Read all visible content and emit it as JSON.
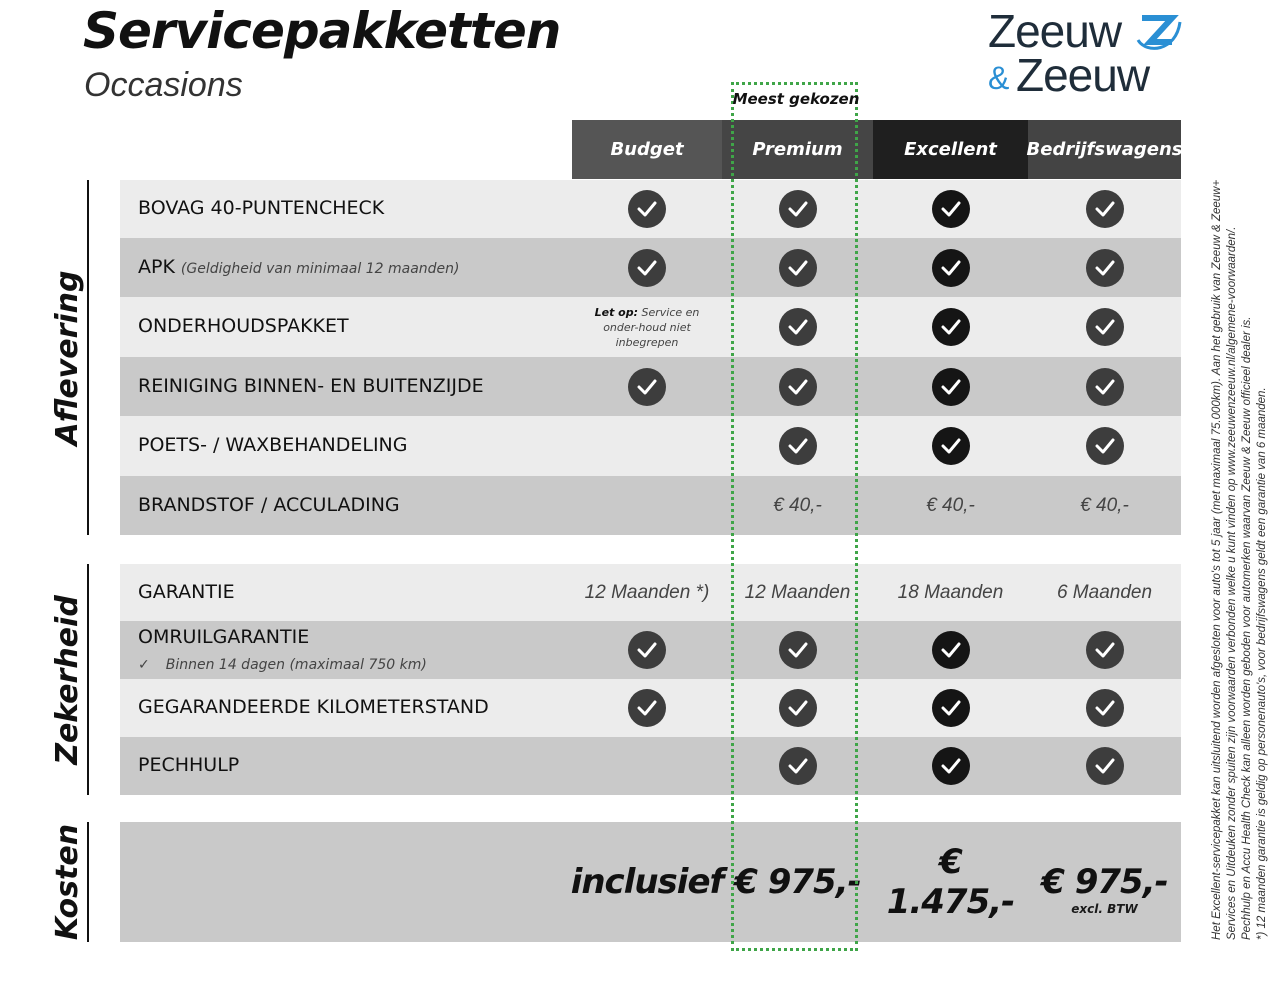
{
  "header": {
    "title": "Servicepakketten",
    "subtitle": "Occasions",
    "logo_text": [
      "Zeeuw",
      "&",
      "Zeeuw"
    ],
    "most_chosen": "Meest gekozen"
  },
  "colors": {
    "accent_green": "#3fa548",
    "logo_blue": "#2a8fd4",
    "logo_dark": "#1f2d3a"
  },
  "columns": [
    {
      "label": "Budget",
      "bg": "#555555"
    },
    {
      "label": "Premium",
      "bg": "#454545"
    },
    {
      "label": "Excellent",
      "bg": "#1f1f1f"
    },
    {
      "label": "Bedrijfswagens",
      "bg": "#444444"
    }
  ],
  "sections": [
    {
      "label": "Aflevering",
      "rows": [
        {
          "label": "BOVAG 40-PUNTENCHECK",
          "cells": [
            "check",
            "check",
            "check",
            "check"
          ]
        },
        {
          "label": "APK",
          "sub": "(Geldigheid van minimaal 12 maanden)",
          "cells": [
            "check",
            "check",
            "check",
            "check"
          ]
        },
        {
          "label": "ONDERHOUDSPAKKET",
          "note_bold": "Let op:",
          "note": "Service en onder-houd niet inbegrepen",
          "cells": [
            "note",
            "check",
            "check",
            "check"
          ]
        },
        {
          "label": "REINIGING BINNEN- EN BUITENZIJDE",
          "cells": [
            "check",
            "check",
            "check",
            "check"
          ]
        },
        {
          "label": "POETS- / WAXBEHANDELING",
          "cells": [
            "",
            "check",
            "check",
            "check"
          ]
        },
        {
          "label": "BRANDSTOF / ACCULADING",
          "cells": [
            "",
            "€ 40,-",
            "€ 40,-",
            "€ 40,-"
          ]
        }
      ]
    },
    {
      "label": "Zekerheid",
      "rows": [
        {
          "label": "GARANTIE",
          "cells": [
            "12 Maanden *)",
            "12 Maanden",
            "18 Maanden",
            "6 Maanden"
          ]
        },
        {
          "label": "OMRUILGARANTIE",
          "sub2": "Binnen 14 dagen (maximaal 750 km)",
          "cells": [
            "check",
            "check",
            "check",
            "check"
          ]
        },
        {
          "label": "GEGARANDEERDE KILOMETERSTAND",
          "cells": [
            "check",
            "check",
            "check",
            "check"
          ]
        },
        {
          "label": "PECHHULP",
          "cells": [
            "",
            "check",
            "check",
            "check"
          ]
        }
      ]
    },
    {
      "label": "Kosten",
      "rows": [
        {
          "label": "",
          "cells": [
            "inclusief",
            "€ 975,-",
            "€ 1.475,-",
            "€ 975,-"
          ],
          "price_note": "excl. BTW"
        }
      ]
    }
  ],
  "footnotes": [
    "Het Excellent-servicepakket kan uitsluitend worden afgesloten voor auto's tot 5 jaar (met maximaal 75.000km). Aan het gebruik van Zeeuw & Zeeuw+",
    "Services en Uitdeuken zonder spuiten zijn voorwaarden verbonden welke u kunt vinden op www.zeeuwenzeeuw.nl/algemene-voorwaarden/.",
    "Pechhulp en Accu Health Check kan alleen worden geboden voor automerken waarvan Zeeuw & Zeeuw officieel dealer is.",
    "*) 12 maanden garantie is geldig op personenauto's, voor bedrijfswagens geldt een garantie van 6 maanden."
  ]
}
